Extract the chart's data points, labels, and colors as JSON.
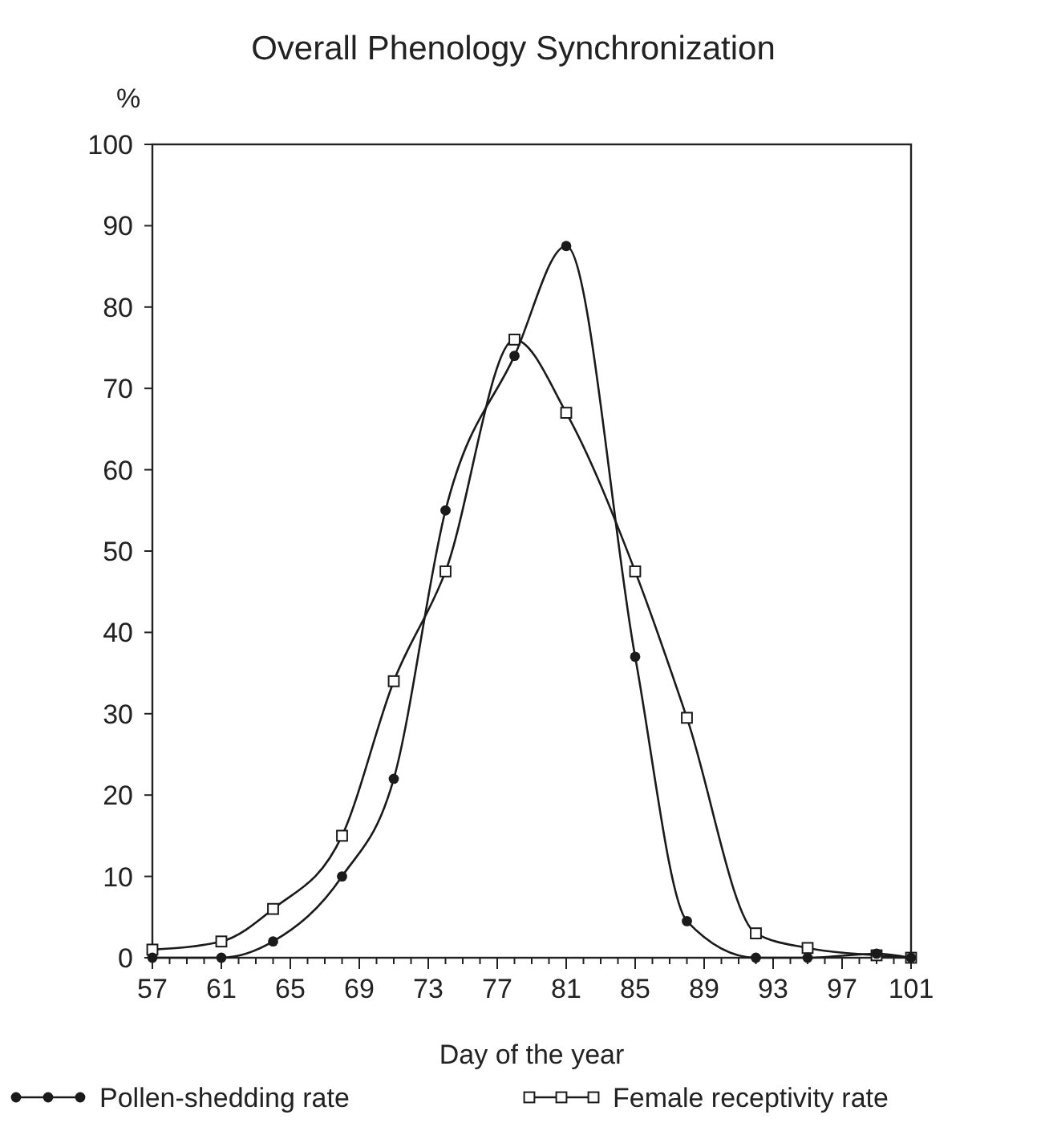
{
  "chart_data": {
    "type": "line",
    "title": "Overall Phenology Synchronization",
    "xlabel": "Day of the year",
    "ylabel": "%",
    "xlim": [
      57,
      101
    ],
    "xticks": [
      57,
      61,
      65,
      69,
      73,
      77,
      81,
      85,
      89,
      93,
      97,
      101
    ],
    "ylim": [
      0,
      100
    ],
    "yticks": [
      0,
      10,
      20,
      30,
      40,
      50,
      60,
      70,
      80,
      90,
      100
    ],
    "grid": false,
    "legend": "bottom",
    "series": [
      {
        "name": "Pollen-shedding rate",
        "color": "#1a1a1a",
        "marker": "circle",
        "x": [
          57,
          61,
          64,
          68,
          71,
          74,
          78,
          81,
          85,
          88,
          92,
          95,
          99,
          101
        ],
        "values": [
          0,
          0,
          2,
          10,
          22,
          55,
          74,
          87.5,
          37,
          4.5,
          0,
          0,
          0.5,
          0
        ]
      },
      {
        "name": "Female receptivity rate",
        "color": "#1a1a1a",
        "marker": "square",
        "x": [
          57,
          61,
          64,
          68,
          71,
          74,
          78,
          81,
          85,
          88,
          92,
          95,
          99,
          101
        ],
        "values": [
          1,
          2,
          6,
          15,
          34,
          47.5,
          76,
          67,
          47.5,
          29.5,
          3,
          1.2,
          0.3,
          0
        ]
      }
    ]
  }
}
